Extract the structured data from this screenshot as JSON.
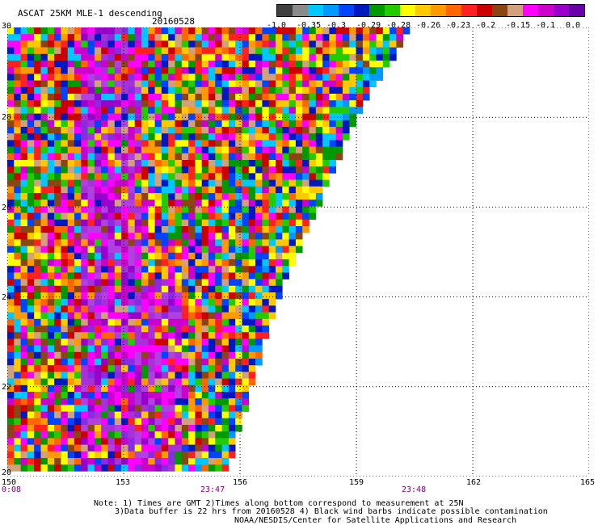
{
  "header": {
    "title": "ASCAT 25KM MLE-1 descending",
    "date": "20160528"
  },
  "colorbar": {
    "colors": [
      "#404040",
      "#8a8a8a",
      "#00c8ff",
      "#0099ff",
      "#0044ff",
      "#0018c0",
      "#009900",
      "#22cc00",
      "#ffff00",
      "#ffc800",
      "#ff9900",
      "#ff6600",
      "#ff2020",
      "#cc0000",
      "#8b4513",
      "#d2a07a",
      "#ff00ff",
      "#cc00cc",
      "#9900cc",
      "#6a00a8"
    ],
    "labels": [
      "-1.0",
      "-0.35",
      "-0.3",
      "-0.29",
      "-0.28",
      "-0.26",
      "-0.23",
      "-0.2",
      "-0.15",
      "-0.1",
      "0.0"
    ]
  },
  "chart_data": {
    "type": "heatmap",
    "title": "ASCAT 25KM MLE-1 descending",
    "x_ticks": [
      "150",
      "153",
      "156",
      "159",
      "162",
      "165"
    ],
    "y_ticks": [
      "30",
      "28",
      "26",
      "24",
      "22",
      "20"
    ],
    "xlim": [
      150,
      165
    ],
    "ylim": [
      20,
      30
    ],
    "time_labels": [
      "0:08",
      "23:47",
      "23:48"
    ],
    "swath_edge": [
      [
        29.8,
        160.3
      ],
      [
        28.2,
        159.1
      ],
      [
        26.0,
        158.0
      ],
      [
        24.0,
        157.0
      ],
      [
        22.0,
        156.3
      ],
      [
        20.2,
        155.7
      ]
    ],
    "grid": true
  },
  "notes": [
    "Note: 1) Times are GMT 2)Times along bottom correspond to measurement at 25N",
    "3)Data buffer is 22 hrs from 20160528 4) Black wind barbs indicate possible contamination",
    "NOAA/NESDIS/Center for Satellite Applications and Research"
  ]
}
